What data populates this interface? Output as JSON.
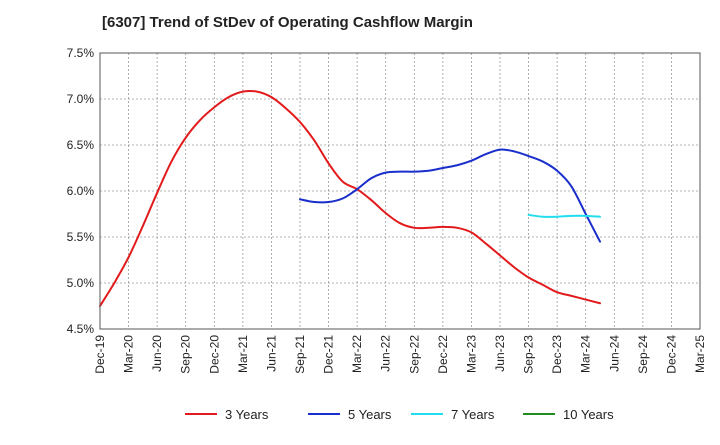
{
  "chart_data": {
    "type": "line",
    "title": "[6307]  Trend of StDev of Operating Cashflow Margin",
    "xlabel": "",
    "ylabel": "",
    "categories": [
      "Dec-19",
      "Mar-20",
      "Jun-20",
      "Sep-20",
      "Dec-20",
      "Mar-21",
      "Jun-21",
      "Sep-21",
      "Dec-21",
      "Mar-22",
      "Jun-22",
      "Sep-22",
      "Dec-22",
      "Mar-23",
      "Jun-23",
      "Sep-23",
      "Dec-23",
      "Mar-24",
      "Jun-24",
      "Sep-24",
      "Dec-24",
      "Mar-25"
    ],
    "y_ticks": [
      "4.5%",
      "5.0%",
      "5.5%",
      "6.0%",
      "6.5%",
      "7.0%",
      "7.5%"
    ],
    "ylim": [
      4.5,
      7.5
    ],
    "grid": true,
    "legend_position": "bottom",
    "series": [
      {
        "name": "3 Years",
        "color": "#e31a1c",
        "points": [
          [
            0,
            4.75
          ],
          [
            0.5,
            5.0
          ],
          [
            1,
            5.28
          ],
          [
            1.5,
            5.62
          ],
          [
            2,
            5.98
          ],
          [
            2.5,
            6.32
          ],
          [
            3,
            6.58
          ],
          [
            3.5,
            6.77
          ],
          [
            4,
            6.91
          ],
          [
            4.5,
            7.02
          ],
          [
            5,
            7.08
          ],
          [
            5.5,
            7.08
          ],
          [
            6,
            7.02
          ],
          [
            6.5,
            6.9
          ],
          [
            7,
            6.75
          ],
          [
            7.5,
            6.55
          ],
          [
            8,
            6.3
          ],
          [
            8.5,
            6.1
          ],
          [
            9,
            6.02
          ],
          [
            9.5,
            5.9
          ],
          [
            10,
            5.76
          ],
          [
            10.5,
            5.65
          ],
          [
            11,
            5.6
          ],
          [
            11.5,
            5.6
          ],
          [
            12,
            5.61
          ],
          [
            12.5,
            5.6
          ],
          [
            13,
            5.55
          ],
          [
            13.5,
            5.43
          ],
          [
            14,
            5.3
          ],
          [
            14.5,
            5.17
          ],
          [
            15,
            5.06
          ],
          [
            15.5,
            4.98
          ],
          [
            16,
            4.9
          ],
          [
            16.5,
            4.86
          ],
          [
            17,
            4.82
          ],
          [
            17.5,
            4.78
          ]
        ]
      },
      {
        "name": "5 Years",
        "color": "#1a2ecc",
        "points": [
          [
            7,
            5.91
          ],
          [
            7.5,
            5.88
          ],
          [
            8,
            5.88
          ],
          [
            8.5,
            5.92
          ],
          [
            9,
            6.02
          ],
          [
            9.5,
            6.14
          ],
          [
            10,
            6.2
          ],
          [
            10.5,
            6.21
          ],
          [
            11,
            6.21
          ],
          [
            11.5,
            6.22
          ],
          [
            12,
            6.25
          ],
          [
            12.5,
            6.28
          ],
          [
            13,
            6.33
          ],
          [
            13.5,
            6.4
          ],
          [
            14,
            6.45
          ],
          [
            14.5,
            6.43
          ],
          [
            15,
            6.38
          ],
          [
            15.5,
            6.32
          ],
          [
            16,
            6.22
          ],
          [
            16.5,
            6.05
          ],
          [
            17,
            5.75
          ],
          [
            17.5,
            5.45
          ]
        ]
      },
      {
        "name": "7 Years",
        "color": "#22ddee",
        "points": [
          [
            15,
            5.74
          ],
          [
            15.5,
            5.72
          ],
          [
            16,
            5.72
          ],
          [
            16.5,
            5.73
          ],
          [
            17,
            5.73
          ],
          [
            17.5,
            5.72
          ]
        ]
      },
      {
        "name": "10 Years",
        "color": "#228b22",
        "points": []
      }
    ]
  }
}
